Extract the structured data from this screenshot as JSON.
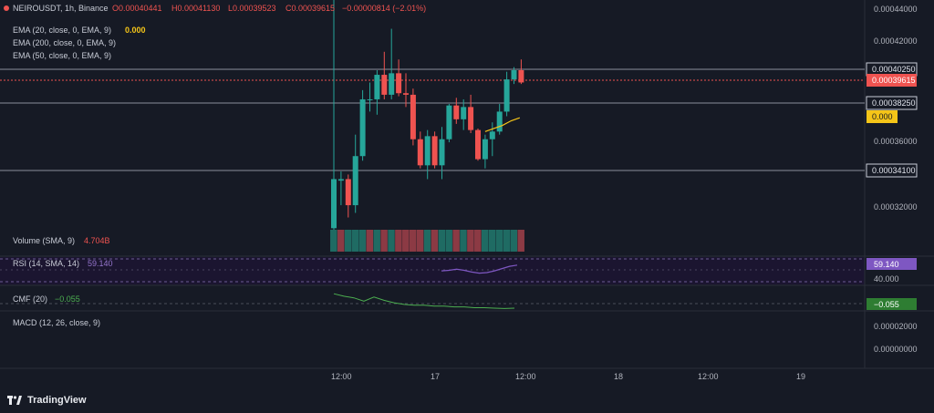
{
  "header": {
    "pair": "NEIROUSDT, 1h, Binance",
    "o": "O0.00040441",
    "h": "H0.00041130",
    "l": "L0.00039523",
    "c": "C0.00039615",
    "chg": "−0.00000814 (−2.01%)"
  },
  "indicators": {
    "ema20": {
      "label": "EMA (20, close, 0, EMA, 9)",
      "value": "0.000"
    },
    "ema200": {
      "label": "EMA (200, close, 0, EMA, 9)"
    },
    "ema50": {
      "label": "EMA (50, close, 0, EMA, 9)"
    },
    "volume": {
      "label": "Volume (SMA, 9)",
      "value": "4.704B"
    },
    "rsi": {
      "label": "RSI (14, SMA, 14)",
      "value": "59.140",
      "tag": "59.140",
      "level": "40.000"
    },
    "cmf": {
      "label": "CMF (20)",
      "value": "−0.055",
      "tag": "−0.055"
    },
    "macd": {
      "label": "MACD (12, 26, close, 9)"
    }
  },
  "price_axis": {
    "ticks": [
      "0.00044000",
      "0.00042000",
      "0.00036000",
      "0.00032000"
    ],
    "tags": {
      "level_top": "0.00040250",
      "current": "0.00039615",
      "level_mid": "0.00038250",
      "ema": "0.000",
      "level_low": "0.00034100"
    }
  },
  "macd_axis": {
    "ticks": [
      "0.00002000",
      "0.00000000"
    ]
  },
  "time_axis": {
    "ticks": [
      "12:00",
      "17",
      "12:00",
      "18",
      "12:00",
      "19"
    ]
  },
  "branding": {
    "name": "TradingView"
  },
  "colors": {
    "background": "#161a25",
    "up": "#26a69a",
    "down": "#ef5350",
    "ema": "#f5c518",
    "rsi": "#7e57c2",
    "cmf": "#4caf50"
  },
  "chart_data": {
    "type": "candlestick",
    "y_range": [
      0.0003,
      0.000445
    ],
    "candles": [
      {
        "o": 0.000301,
        "h": 0.000451,
        "l": 0.0003,
        "c": 0.000333
      },
      {
        "o": 0.000332,
        "h": 0.000338,
        "l": 0.000316,
        "c": 0.000333
      },
      {
        "o": 0.000333,
        "h": 0.000336,
        "l": 0.000308,
        "c": 0.000316
      },
      {
        "o": 0.000316,
        "h": 0.000362,
        "l": 0.000311,
        "c": 0.000348
      },
      {
        "o": 0.000348,
        "h": 0.000391,
        "l": 0.000345,
        "c": 0.000385
      },
      {
        "o": 0.000385,
        "h": 0.000396,
        "l": 0.000377,
        "c": 0.000385
      },
      {
        "o": 0.000385,
        "h": 0.000404,
        "l": 0.000375,
        "c": 0.000401
      },
      {
        "o": 0.000401,
        "h": 0.000416,
        "l": 0.000385,
        "c": 0.000388
      },
      {
        "o": 0.000388,
        "h": 0.000431,
        "l": 0.000385,
        "c": 0.000402
      },
      {
        "o": 0.000402,
        "h": 0.000411,
        "l": 0.000387,
        "c": 0.000389
      },
      {
        "o": 0.000389,
        "h": 0.000402,
        "l": 0.00038,
        "c": 0.000388
      },
      {
        "o": 0.000388,
        "h": 0.000392,
        "l": 0.000355,
        "c": 0.000359
      },
      {
        "o": 0.000359,
        "h": 0.000364,
        "l": 0.00034,
        "c": 0.000342
      },
      {
        "o": 0.000342,
        "h": 0.000365,
        "l": 0.000333,
        "c": 0.000361
      },
      {
        "o": 0.000361,
        "h": 0.000364,
        "l": 0.00034,
        "c": 0.000342
      },
      {
        "o": 0.000342,
        "h": 0.000367,
        "l": 0.000333,
        "c": 0.000359
      },
      {
        "o": 0.000359,
        "h": 0.000382,
        "l": 0.000357,
        "c": 0.000381
      },
      {
        "o": 0.000381,
        "h": 0.000386,
        "l": 0.000369,
        "c": 0.000372
      },
      {
        "o": 0.000372,
        "h": 0.000385,
        "l": 0.000365,
        "c": 0.00038
      },
      {
        "o": 0.00038,
        "h": 0.000388,
        "l": 0.000363,
        "c": 0.000365
      },
      {
        "o": 0.000365,
        "h": 0.000366,
        "l": 0.000345,
        "c": 0.000346
      },
      {
        "o": 0.000346,
        "h": 0.000362,
        "l": 0.00034,
        "c": 0.000359
      },
      {
        "o": 0.000359,
        "h": 0.00037,
        "l": 0.000348,
        "c": 0.000364
      },
      {
        "o": 0.000364,
        "h": 0.000382,
        "l": 0.000362,
        "c": 0.000377
      },
      {
        "o": 0.000377,
        "h": 0.000403,
        "l": 0.000374,
        "c": 0.000398
      },
      {
        "o": 0.000398,
        "h": 0.000406,
        "l": 0.000395,
        "c": 0.000404
      },
      {
        "o": 0.000404,
        "h": 0.000411,
        "l": 0.000395,
        "c": 0.000396
      }
    ],
    "volume_direction": [
      "up",
      "down",
      "up",
      "up",
      "up",
      "down",
      "up",
      "down",
      "up",
      "down",
      "down",
      "down",
      "down",
      "up",
      "down",
      "up",
      "up",
      "down",
      "up",
      "down",
      "down",
      "up",
      "up",
      "up",
      "up",
      "up",
      "down"
    ],
    "ema20": [
      0.000364,
      0.000366,
      0.000368,
      0.000371,
      0.000373
    ],
    "rsi": [
      49,
      50,
      52,
      50,
      47,
      45,
      46,
      49,
      53,
      57,
      59.14
    ],
    "cmf": [
      0.12,
      0.09,
      0.07,
      0.03,
      0.08,
      0.04,
      0.01,
      -0.01,
      -0.02,
      -0.02,
      -0.03,
      -0.03,
      -0.04,
      -0.04,
      -0.05,
      -0.05,
      -0.055,
      -0.06,
      -0.055
    ]
  }
}
